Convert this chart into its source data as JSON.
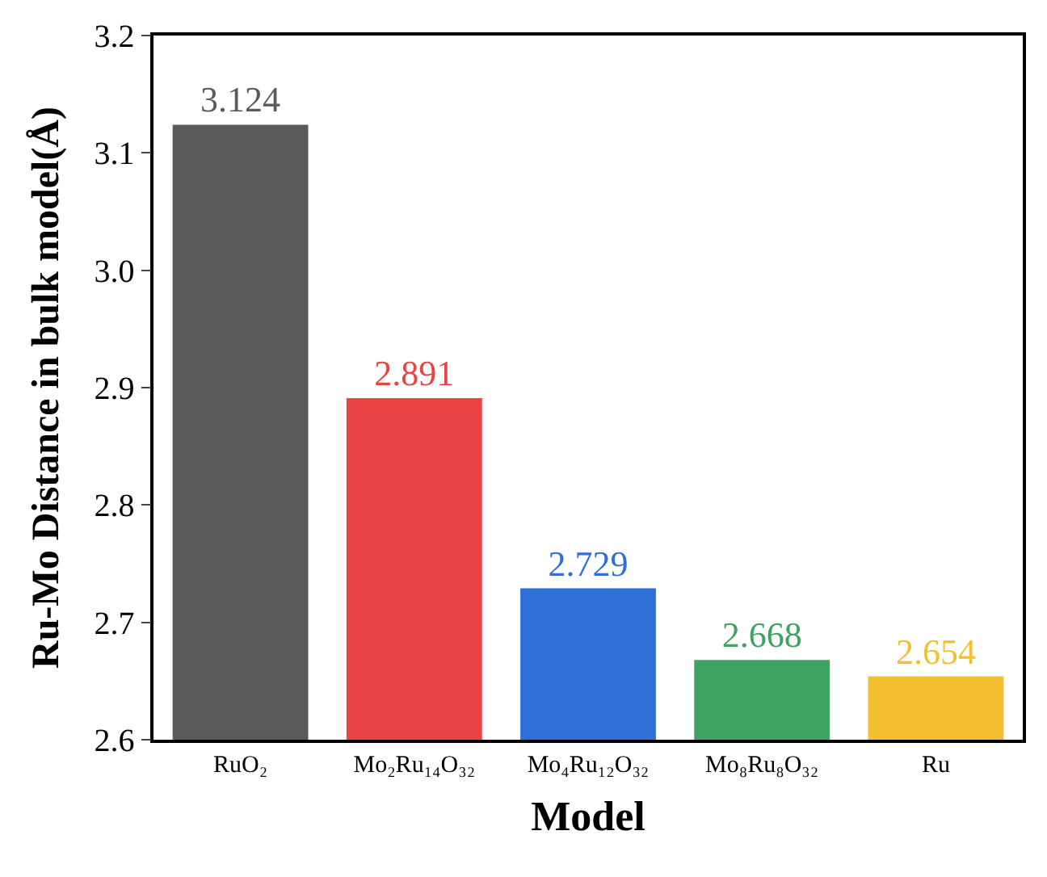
{
  "chart_data": {
    "type": "bar",
    "xlabel": "Model",
    "ylabel": "Ru-Mo Distance in bulk model(Å)",
    "categories": [
      "RuO₂",
      "Mo₂Ru₁₄O₃₂",
      "Mo₄Ru₁₂O₃₂",
      "Mo₈Ru₈O₃₂",
      "Ru"
    ],
    "values": [
      3.124,
      2.891,
      2.729,
      2.668,
      2.654
    ],
    "colors": [
      "#5a5a5a",
      "#e84444",
      "#2e6fd8",
      "#3ea262",
      "#f4bf2e"
    ],
    "ylim": [
      2.6,
      3.2
    ],
    "yticks": [
      2.6,
      2.7,
      2.8,
      2.9,
      {
        "value": 3.0,
        "label": "3.0"
      },
      3.1,
      3.2
    ],
    "data_labels": true,
    "legend": false
  }
}
